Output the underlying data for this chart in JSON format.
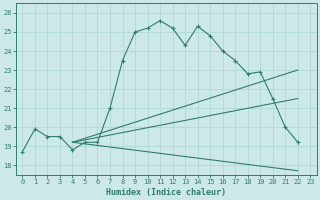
{
  "xlabel": "Humidex (Indice chaleur)",
  "xlim": [
    -0.5,
    23.5
  ],
  "ylim": [
    17.5,
    26.5
  ],
  "yticks": [
    18,
    19,
    20,
    21,
    22,
    23,
    24,
    25,
    26
  ],
  "xticks": [
    0,
    1,
    2,
    3,
    4,
    5,
    6,
    7,
    8,
    9,
    10,
    11,
    12,
    13,
    14,
    15,
    16,
    17,
    18,
    19,
    20,
    21,
    22,
    23
  ],
  "bg_color": "#cde8e8",
  "grid_color": "#b0d8d8",
  "line_color": "#2e7d6e",
  "line1_x": [
    0,
    1,
    2,
    3,
    4,
    5,
    6,
    7,
    8,
    9,
    10,
    11,
    12,
    13,
    14,
    15,
    16,
    17,
    18,
    19,
    20,
    21,
    22
  ],
  "line1_y": [
    18.7,
    19.9,
    19.5,
    19.5,
    18.8,
    19.2,
    19.2,
    21.0,
    23.5,
    25.0,
    25.2,
    25.6,
    25.2,
    24.3,
    25.3,
    24.8,
    24.0,
    23.5,
    22.8,
    22.9,
    21.5,
    20.0,
    19.2
  ],
  "line2_x": [
    4,
    22
  ],
  "line2_y": [
    19.2,
    23.0
  ],
  "line3_x": [
    4,
    22
  ],
  "line3_y": [
    19.2,
    21.5
  ],
  "line4_x": [
    4,
    22
  ],
  "line4_y": [
    19.2,
    17.7
  ],
  "figsize": [
    3.2,
    2.0
  ],
  "dpi": 100
}
